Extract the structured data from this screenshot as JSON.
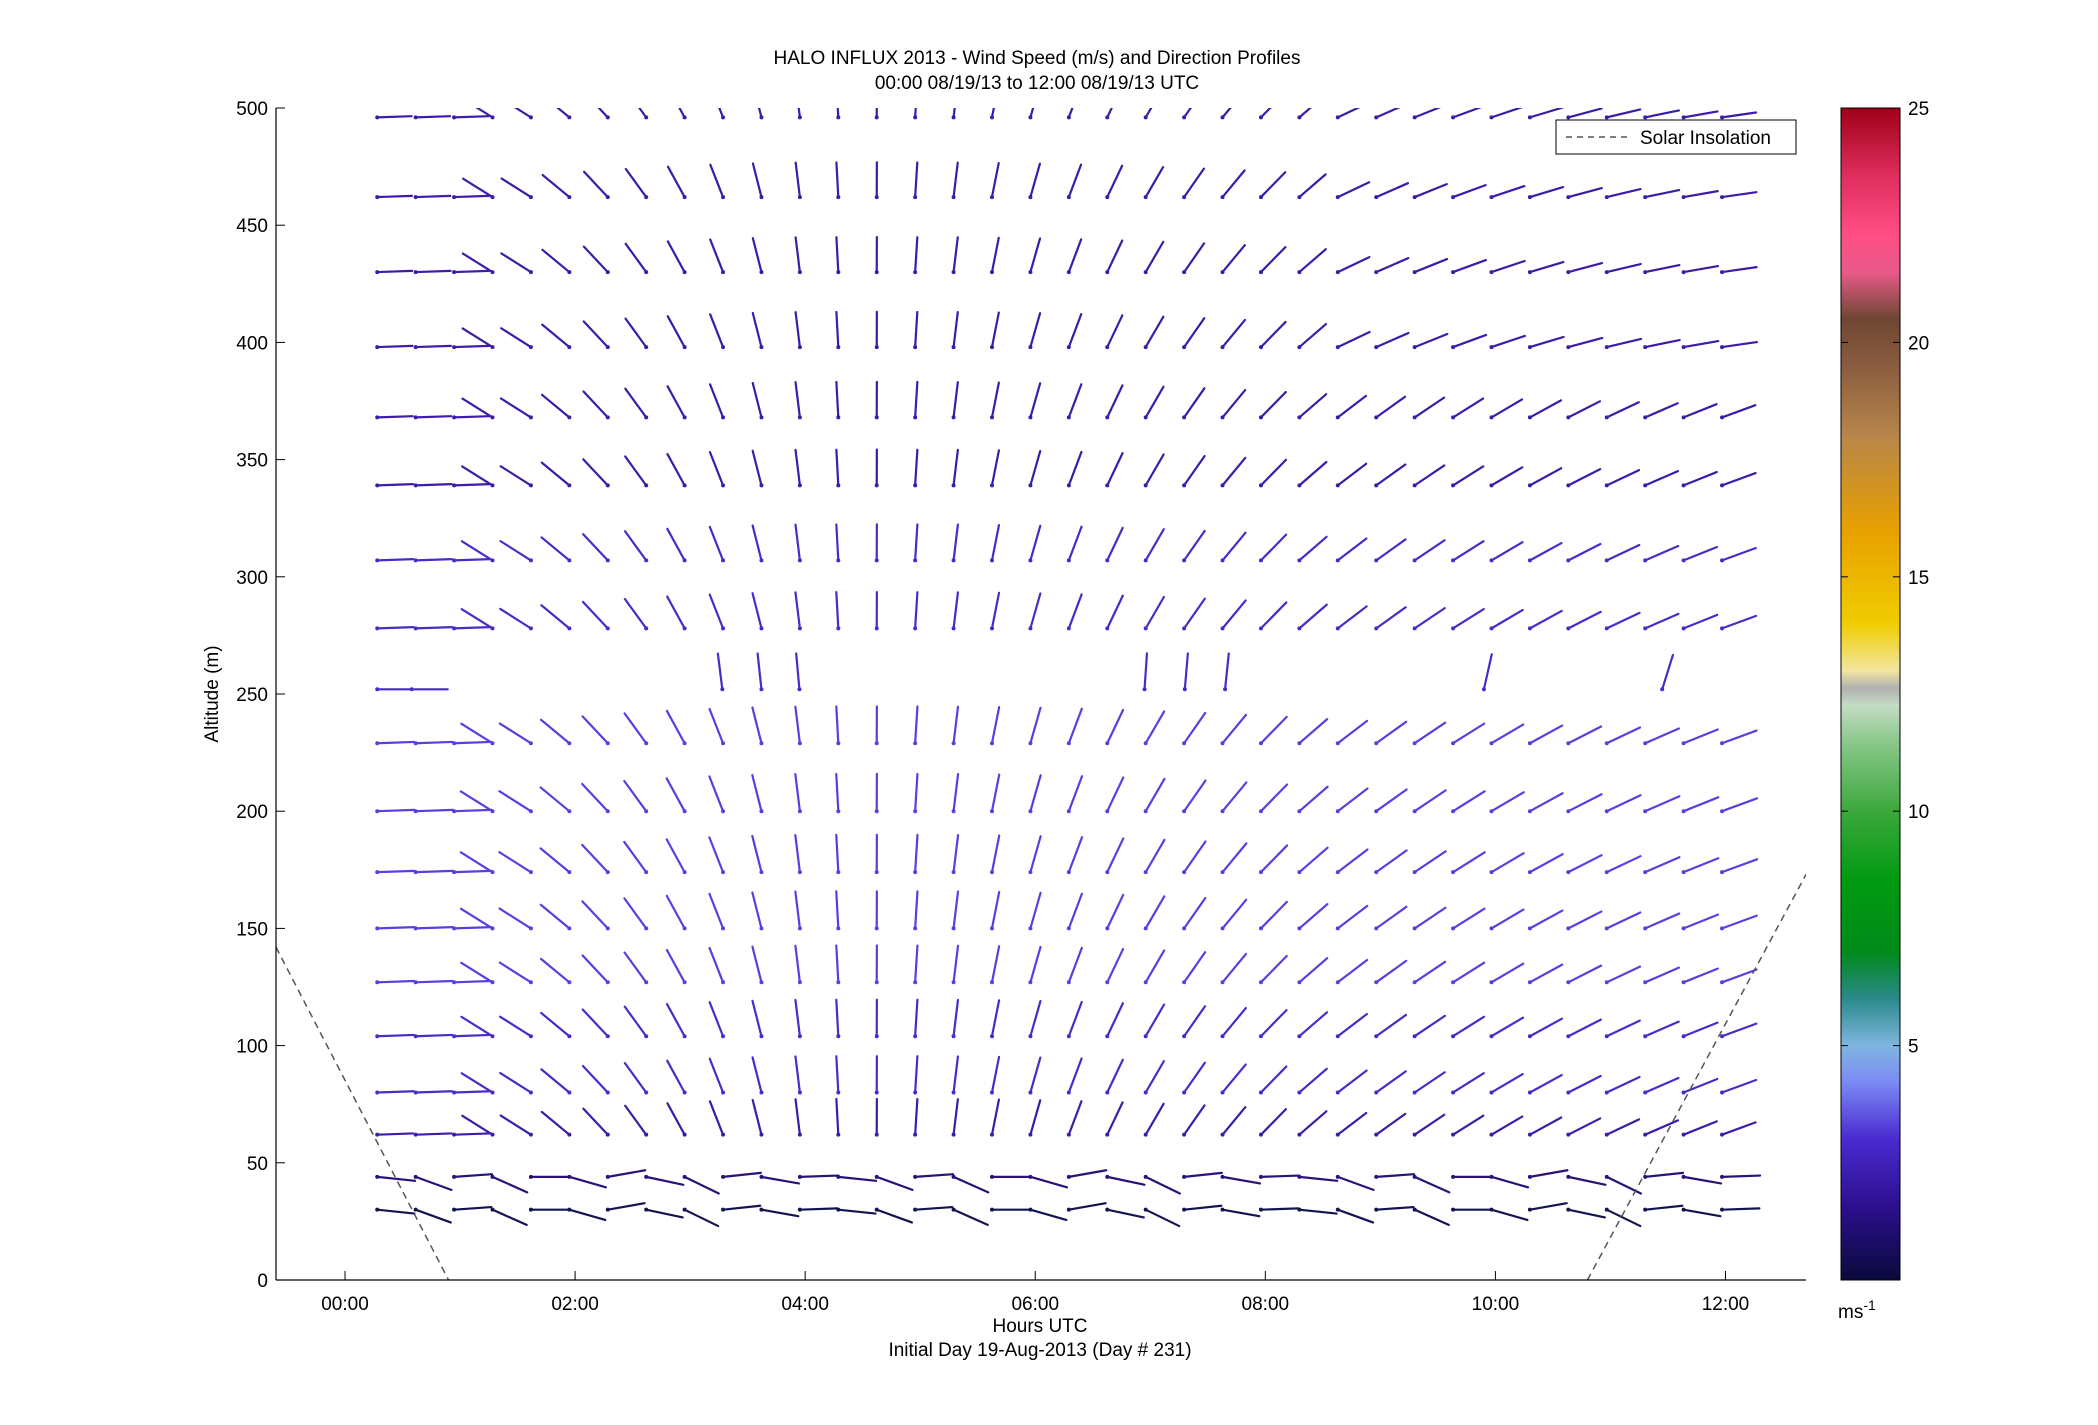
{
  "chart_data": {
    "type": "quiver",
    "title": "HALO INFLUX 2013 - Wind Speed (m/s) and Direction Profiles",
    "subtitle": "00:00 08/19/13 to 12:00 08/19/13  UTC",
    "xlabel": "Hours UTC",
    "xlabel2": "Initial Day 19-Aug-2013 (Day # 231)",
    "ylabel": "Altitude (m)",
    "xlim": [
      -0.6,
      12.7
    ],
    "ylim": [
      0,
      500
    ],
    "xticks": [
      0,
      2,
      4,
      6,
      8,
      10,
      12
    ],
    "xtick_labels": [
      "00:00",
      "02:00",
      "04:00",
      "06:00",
      "08:00",
      "10:00",
      "12:00"
    ],
    "yticks": [
      0,
      50,
      100,
      150,
      200,
      250,
      300,
      350,
      400,
      450,
      500
    ],
    "ytick_labels": [
      "0",
      "50",
      "100",
      "150",
      "200",
      "250",
      "300",
      "350",
      "400",
      "450",
      "500"
    ],
    "legend": {
      "position": "top-right",
      "entries": [
        "Solar Insolation"
      ]
    },
    "colorbar": {
      "min": 0,
      "max": 25,
      "ticks": [
        5,
        10,
        15,
        20,
        25
      ],
      "tick_labels": [
        "5",
        "10",
        "15",
        "20",
        "25"
      ],
      "unit_label": "ms",
      "unit_exponent": "-1"
    },
    "solar_insolation": {
      "color": "#555555",
      "morning": [
        {
          "x": -0.6,
          "y": 142
        },
        {
          "x": 0.9,
          "y": 0
        }
      ],
      "evening": [
        {
          "x": 10.8,
          "y": 0
        },
        {
          "x": 12.7,
          "y": 173
        }
      ]
    },
    "wind_rows": [
      {
        "alt": 30,
        "kind": "surface",
        "speed": 1.6
      },
      {
        "alt": 44,
        "kind": "surface",
        "speed": 1.8
      },
      {
        "alt": 62,
        "kind": "upper",
        "speed": 3.2
      },
      {
        "alt": 80,
        "kind": "upper",
        "speed": 3.4
      },
      {
        "alt": 104,
        "kind": "upper",
        "speed": 3.5
      },
      {
        "alt": 127,
        "kind": "upper",
        "speed": 3.6
      },
      {
        "alt": 150,
        "kind": "upper",
        "speed": 3.7
      },
      {
        "alt": 174,
        "kind": "upper",
        "speed": 3.8
      },
      {
        "alt": 200,
        "kind": "upper",
        "speed": 3.8
      },
      {
        "alt": 229,
        "kind": "upper",
        "speed": 3.6
      },
      {
        "alt": 252,
        "kind": "sparse",
        "speed": 3.3,
        "x": [
          0.28,
          0.58,
          3.28,
          3.62,
          3.95,
          6.95,
          7.3,
          7.65,
          9.9,
          11.45
        ]
      },
      {
        "alt": 278,
        "kind": "upper",
        "speed": 3.4
      },
      {
        "alt": 307,
        "kind": "upper",
        "speed": 3.3
      },
      {
        "alt": 339,
        "kind": "upper",
        "speed": 3.2
      },
      {
        "alt": 368,
        "kind": "upper",
        "speed": 3.1
      },
      {
        "alt": 398,
        "kind": "upper",
        "speed": 3.0
      },
      {
        "alt": 430,
        "kind": "upper",
        "speed": 2.9
      },
      {
        "alt": 462,
        "kind": "upper",
        "speed": 2.8
      },
      {
        "alt": 496,
        "kind": "upper",
        "speed": 2.7
      }
    ]
  }
}
